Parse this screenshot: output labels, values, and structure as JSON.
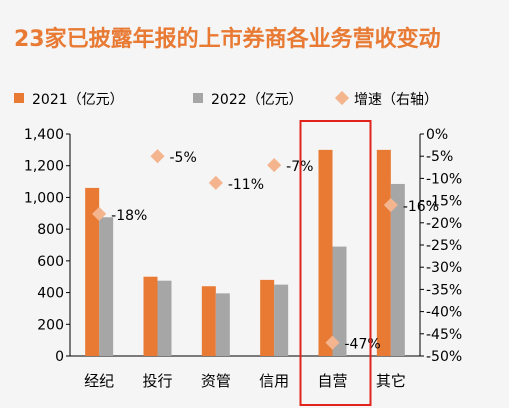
{
  "chart_data": {
    "type": "bar",
    "title": "23家已披露年报的上市券商各业务营收变动",
    "categories": [
      "经纪",
      "投行",
      "资管",
      "信用",
      "自营",
      "其它"
    ],
    "series": [
      {
        "name": "2021（亿元）",
        "type": "bar",
        "axis": "left",
        "color": "#e87a34",
        "values": [
          1060,
          500,
          440,
          480,
          1300,
          1300
        ]
      },
      {
        "name": "2022（亿元）",
        "type": "bar",
        "axis": "left",
        "color": "#a6a6a6",
        "values": [
          875,
          475,
          395,
          450,
          690,
          1085
        ]
      },
      {
        "name": "增速（右轴）",
        "type": "scatter",
        "axis": "right",
        "color": "#f4b58e",
        "values": [
          -18,
          -5,
          -11,
          -7,
          -47,
          -16
        ],
        "labels": [
          "-18%",
          "-5%",
          "-11%",
          "-7%",
          "-47%",
          "-16%"
        ]
      }
    ],
    "y_left": {
      "range": [
        0,
        1400
      ],
      "ticks": [
        0,
        200,
        400,
        600,
        800,
        1000,
        1200,
        1400
      ],
      "tick_labels": [
        "0",
        "200",
        "400",
        "600",
        "800",
        "1,000",
        "1,200",
        "1,400"
      ]
    },
    "y_right": {
      "range": [
        -50,
        0
      ],
      "ticks": [
        0,
        -5,
        -10,
        -15,
        -20,
        -25,
        -30,
        -35,
        -40,
        -45,
        -50
      ],
      "tick_labels": [
        "0%",
        "-5%",
        "-10%",
        "-15%",
        "-20%",
        "-25%",
        "-30%",
        "-35%",
        "-40%",
        "-45%",
        "-50%"
      ]
    },
    "legend_position": "top",
    "grid": false,
    "highlight": {
      "category": "自营",
      "color": "#e0231b"
    }
  }
}
